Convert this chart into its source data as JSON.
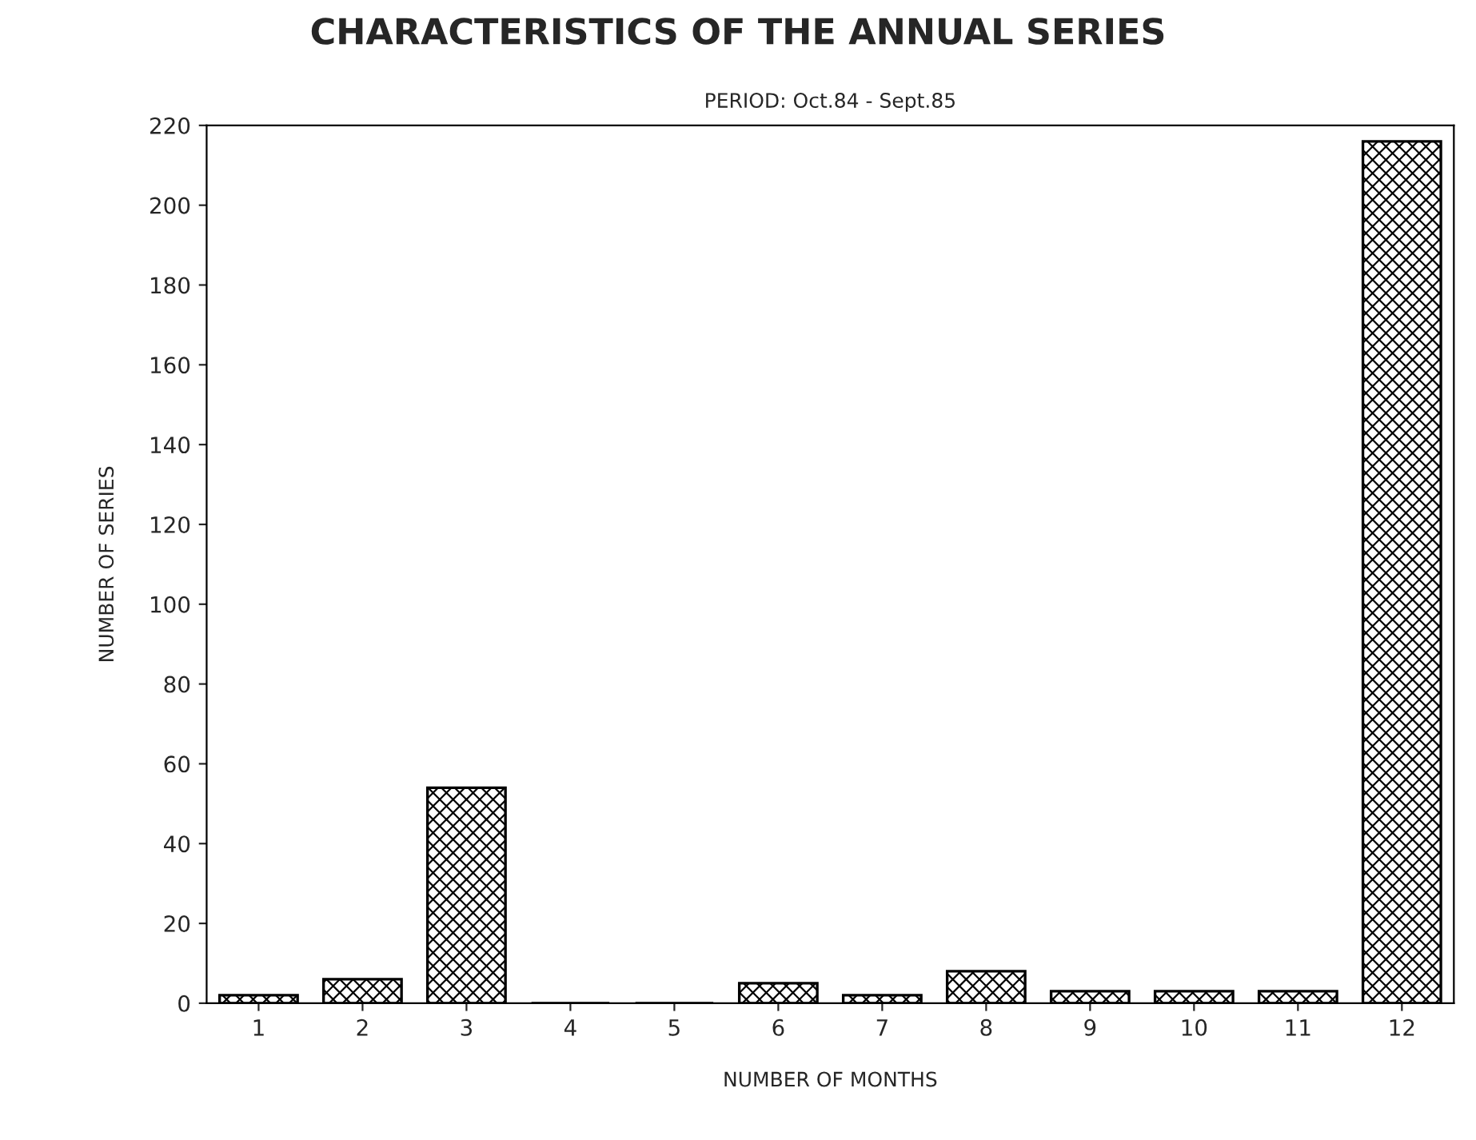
{
  "chart_data": {
    "type": "bar",
    "title": "CHARACTERISTICS OF THE ANNUAL SERIES",
    "subtitle": "PERIOD: Oct.84 - Sept.85",
    "xlabel": "NUMBER OF MONTHS",
    "ylabel": "NUMBER OF SERIES",
    "categories": [
      "1",
      "2",
      "3",
      "4",
      "5",
      "6",
      "7",
      "8",
      "9",
      "10",
      "11",
      "12"
    ],
    "values": [
      2,
      6,
      54,
      0,
      0,
      5,
      2,
      8,
      3,
      3,
      3,
      216
    ],
    "color": "#000000",
    "ylim": [
      0,
      220
    ],
    "yticks": [
      0,
      20,
      40,
      60,
      80,
      100,
      120,
      140,
      160,
      180,
      200,
      220
    ],
    "grid": false
  }
}
